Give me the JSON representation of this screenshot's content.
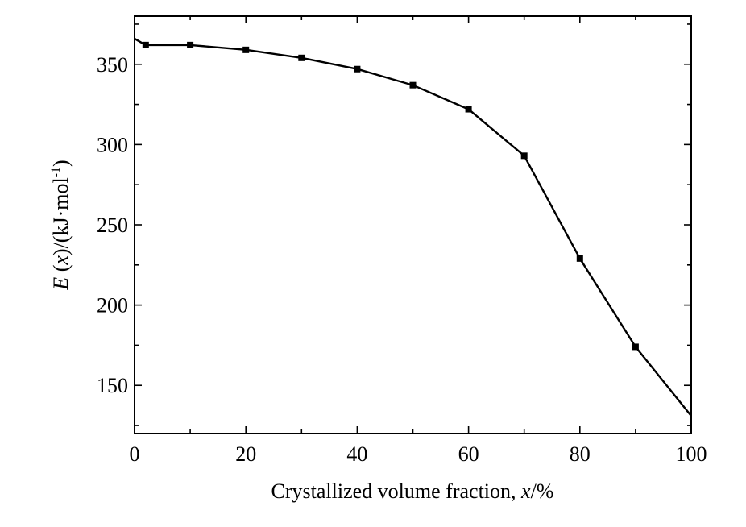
{
  "chart_data": {
    "type": "line",
    "xlabel": "Crystallized volume fraction, x/%",
    "xlabel_parts": [
      "Crystallized volume fraction, ",
      "x",
      "/%"
    ],
    "ylabel": "E (x)/(kJ·mol-1)",
    "ylabel_parts": {
      "e": "E",
      "open": " (",
      "x": "x",
      "close": ")/(kJ·mol",
      "sup": "-1",
      "end": ")"
    },
    "xlim": [
      0,
      100
    ],
    "ylim": [
      120,
      380
    ],
    "xticks": [
      0,
      20,
      40,
      60,
      80,
      100
    ],
    "yticks": [
      150,
      200,
      250,
      300,
      350
    ],
    "grid": false,
    "legend": "none",
    "series": [
      {
        "x": [
          0,
          2,
          10,
          20,
          30,
          40,
          50,
          60,
          70,
          80,
          90,
          100
        ],
        "y": [
          366,
          362,
          362,
          359,
          354,
          347,
          337,
          322,
          293,
          229,
          174,
          131
        ],
        "markers": [
          false,
          true,
          true,
          true,
          true,
          true,
          true,
          true,
          true,
          true,
          true,
          false
        ]
      }
    ]
  }
}
